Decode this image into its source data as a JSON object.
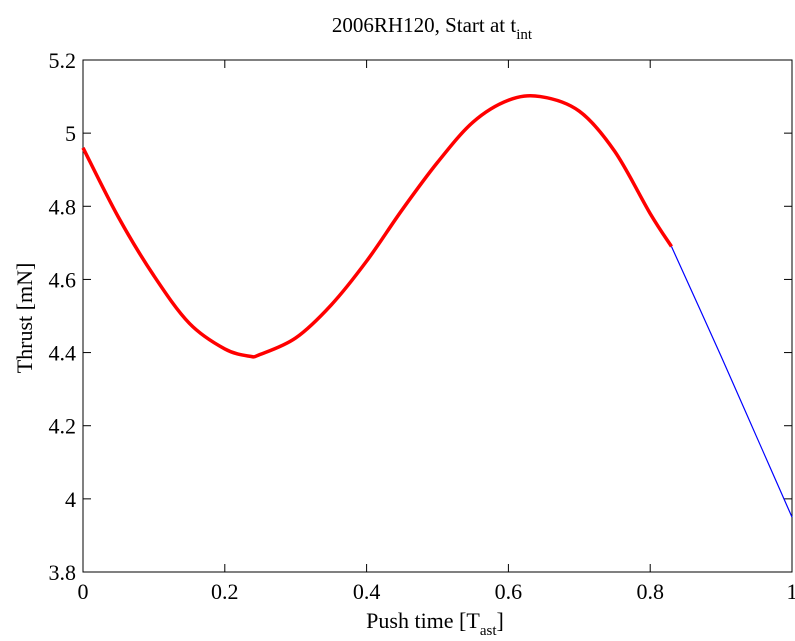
{
  "chart_data": {
    "type": "line",
    "title": "2006RH120, Start at t",
    "title_subscript": "int",
    "xlabel": "Push time [T",
    "xlabel_subscript": "ast",
    "xlabel_suffix": "]",
    "ylabel": "Thrust [mN]",
    "xlim": [
      0,
      1
    ],
    "ylim": [
      3.8,
      5.2
    ],
    "xticks": [
      0,
      0.2,
      0.4,
      0.6,
      0.8,
      1
    ],
    "xtick_labels": [
      "0",
      "0.2",
      "0.4",
      "0.6",
      "0.8",
      "1"
    ],
    "yticks": [
      3.8,
      4,
      4.2,
      4.4,
      4.6,
      4.8,
      5,
      5.2
    ],
    "ytick_labels": [
      "3.8",
      "4",
      "4.2",
      "4.4",
      "4.6",
      "4.8",
      "5",
      "5.2"
    ],
    "grid": false,
    "series": [
      {
        "color": "#ff0000",
        "style": "thick",
        "x": [
          0,
          0.05,
          0.1,
          0.15,
          0.2,
          0.235,
          0.25,
          0.3,
          0.35,
          0.4,
          0.45,
          0.5,
          0.55,
          0.6,
          0.645,
          0.7,
          0.75,
          0.8,
          0.83
        ],
        "y": [
          4.96,
          4.77,
          4.61,
          4.48,
          4.41,
          4.39,
          4.395,
          4.44,
          4.53,
          4.65,
          4.79,
          4.92,
          5.03,
          5.09,
          5.1,
          5.06,
          4.95,
          4.78,
          4.69
        ]
      },
      {
        "color": "#0000ff",
        "style": "thin",
        "x": [
          0.83,
          0.9,
          0.95,
          1.0
        ],
        "y": [
          4.69,
          4.39,
          4.17,
          3.95
        ]
      }
    ]
  }
}
